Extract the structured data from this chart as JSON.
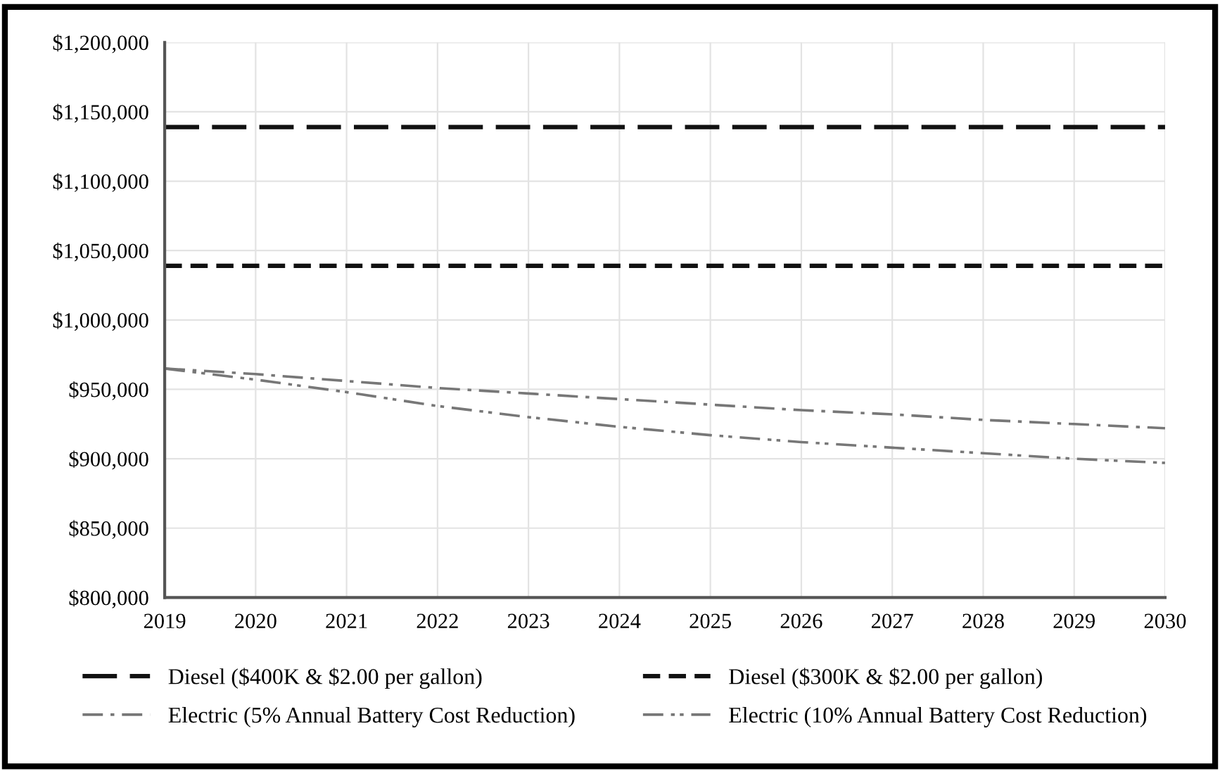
{
  "chart_data": {
    "type": "line",
    "x": [
      2019,
      2020,
      2021,
      2022,
      2023,
      2024,
      2025,
      2026,
      2027,
      2028,
      2029,
      2030
    ],
    "xlim": [
      2019,
      2030
    ],
    "xticks": [
      2019,
      2020,
      2021,
      2022,
      2023,
      2024,
      2025,
      2026,
      2027,
      2028,
      2029,
      2030
    ],
    "ylim": [
      800000,
      1200000
    ],
    "yticks": [
      {
        "value": 800000,
        "label": "$800,000"
      },
      {
        "value": 850000,
        "label": "$850,000"
      },
      {
        "value": 900000,
        "label": "$900,000"
      },
      {
        "value": 950000,
        "label": "$950,000"
      },
      {
        "value": 1000000,
        "label": "$1,000,000"
      },
      {
        "value": 1050000,
        "label": "$1,050,000"
      },
      {
        "value": 1100000,
        "label": "$1,100,000"
      },
      {
        "value": 1150000,
        "label": "$1,150,000"
      },
      {
        "value": 1200000,
        "label": "$1,200,000"
      }
    ],
    "grid": true,
    "legend": "bottom",
    "marker": "none",
    "series": [
      {
        "name": "Diesel ($400K & $2.00 per gallon)",
        "color": "#111111",
        "line_style": "dashed",
        "values": [
          1139000,
          1139000,
          1139000,
          1139000,
          1139000,
          1139000,
          1139000,
          1139000,
          1139000,
          1139000,
          1139000,
          1139000
        ]
      },
      {
        "name": "Diesel ($300K & $2.00 per gallon)",
        "color": "#111111",
        "line_style": "dotted",
        "values": [
          1039000,
          1039000,
          1039000,
          1039000,
          1039000,
          1039000,
          1039000,
          1039000,
          1039000,
          1039000,
          1039000,
          1039000
        ]
      },
      {
        "name": "Electric (5% Annual Battery Cost Reduction)",
        "color": "#777777",
        "line_style": "dashdot",
        "values": [
          965000,
          961000,
          956000,
          951000,
          947000,
          943000,
          939000,
          935000,
          932000,
          928000,
          925000,
          922000
        ]
      },
      {
        "name": "Electric (10% Annual Battery Cost Reduction)",
        "color": "#777777",
        "line_style": "dashdotdot",
        "values": [
          965000,
          957000,
          948000,
          938000,
          930000,
          923000,
          917000,
          912000,
          908000,
          904000,
          900000,
          897000
        ]
      }
    ]
  }
}
